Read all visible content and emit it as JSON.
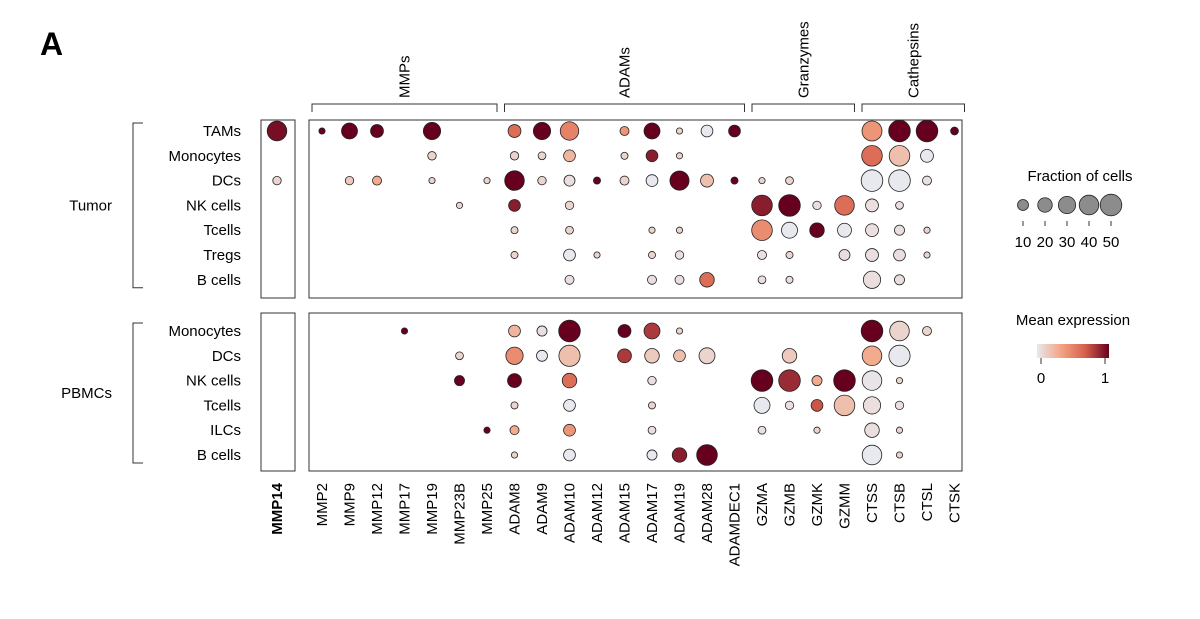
{
  "chart_data": {
    "type": "dotplot",
    "panel_label": "A",
    "genes": [
      "MMP14",
      "MMP2",
      "MMP9",
      "MMP12",
      "MMP17",
      "MMP19",
      "MMP23B",
      "MMP25",
      "ADAM8",
      "ADAM9",
      "ADAM10",
      "ADAM12",
      "ADAM15",
      "ADAM17",
      "ADAM19",
      "ADAM28",
      "ADAMDEC1",
      "GZMA",
      "GZMB",
      "GZMK",
      "GZMM",
      "CTSS",
      "CTSB",
      "CTSL",
      "CTSK"
    ],
    "highlight_gene": "MMP14",
    "gene_groups": [
      {
        "name": "MMPs",
        "from": "MMP2",
        "to": "MMP25"
      },
      {
        "name": "ADAMs",
        "from": "ADAM8",
        "to": "ADAMDEC1"
      },
      {
        "name": "Granzymes",
        "from": "GZMA",
        "to": "GZMM"
      },
      {
        "name": "Cathepsins",
        "from": "CTSS",
        "to": "CTSK"
      }
    ],
    "row_groups": [
      {
        "name": "Tumor",
        "rows": [
          "TAMs",
          "Monocytes",
          "DCs",
          "NK cells",
          "Tcells",
          "Tregs",
          "B cells"
        ]
      },
      {
        "name": "PBMCs",
        "rows": [
          "Monocytes",
          "DCs",
          "NK cells",
          "Tcells",
          "ILCs",
          "B cells"
        ]
      }
    ],
    "dots": [
      {
        "g": 0,
        "r": "TAMs",
        "gene": "MMP14",
        "frac": 40,
        "expr": 0.95
      },
      {
        "g": 0,
        "r": "TAMs",
        "gene": "MMP2",
        "frac": 2,
        "expr": 1.0
      },
      {
        "g": 0,
        "r": "TAMs",
        "gene": "MMP9",
        "frac": 25,
        "expr": 1.0
      },
      {
        "g": 0,
        "r": "TAMs",
        "gene": "MMP12",
        "frac": 15,
        "expr": 1.0
      },
      {
        "g": 0,
        "r": "TAMs",
        "gene": "MMP19",
        "frac": 30,
        "expr": 1.0
      },
      {
        "g": 0,
        "r": "TAMs",
        "gene": "ADAM8",
        "frac": 15,
        "expr": 0.6
      },
      {
        "g": 0,
        "r": "TAMs",
        "gene": "ADAM9",
        "frac": 30,
        "expr": 1.0
      },
      {
        "g": 0,
        "r": "TAMs",
        "gene": "ADAM10",
        "frac": 35,
        "expr": 0.5
      },
      {
        "g": 0,
        "r": "TAMs",
        "gene": "ADAM15",
        "frac": 6,
        "expr": 0.4
      },
      {
        "g": 0,
        "r": "TAMs",
        "gene": "ADAM17",
        "frac": 25,
        "expr": 1.0
      },
      {
        "g": 0,
        "r": "TAMs",
        "gene": "ADAM19",
        "frac": 2,
        "expr": 0.1
      },
      {
        "g": 0,
        "r": "TAMs",
        "gene": "ADAM28",
        "frac": 12,
        "expr": 0.0
      },
      {
        "g": 0,
        "r": "TAMs",
        "gene": "ADAMDEC1",
        "frac": 12,
        "expr": 1.0
      },
      {
        "g": 0,
        "r": "TAMs",
        "gene": "CTSS",
        "frac": 42,
        "expr": 0.4
      },
      {
        "g": 0,
        "r": "TAMs",
        "gene": "CTSB",
        "frac": 50,
        "expr": 1.0
      },
      {
        "g": 0,
        "r": "TAMs",
        "gene": "CTSL",
        "frac": 50,
        "expr": 1.0
      },
      {
        "g": 0,
        "r": "TAMs",
        "gene": "CTSK",
        "frac": 4,
        "expr": 1.0
      },
      {
        "g": 0,
        "r": "Monocytes",
        "gene": "MMP19",
        "frac": 5,
        "expr": 0.1
      },
      {
        "g": 0,
        "r": "Monocytes",
        "gene": "ADAM8",
        "frac": 5,
        "expr": 0.1
      },
      {
        "g": 0,
        "r": "Monocytes",
        "gene": "ADAM9",
        "frac": 4,
        "expr": 0.1
      },
      {
        "g": 0,
        "r": "Monocytes",
        "gene": "ADAM10",
        "frac": 12,
        "expr": 0.25
      },
      {
        "g": 0,
        "r": "Monocytes",
        "gene": "ADAM15",
        "frac": 3,
        "expr": 0.1
      },
      {
        "g": 0,
        "r": "Monocytes",
        "gene": "ADAM17",
        "frac": 12,
        "expr": 0.9
      },
      {
        "g": 0,
        "r": "Monocytes",
        "gene": "ADAM19",
        "frac": 2,
        "expr": 0.1
      },
      {
        "g": 0,
        "r": "Monocytes",
        "gene": "CTSS",
        "frac": 45,
        "expr": 0.6
      },
      {
        "g": 0,
        "r": "Monocytes",
        "gene": "CTSB",
        "frac": 45,
        "expr": 0.2
      },
      {
        "g": 0,
        "r": "Monocytes",
        "gene": "CTSL",
        "frac": 15,
        "expr": 0.0
      },
      {
        "g": 0,
        "r": "DCs",
        "gene": "MMP14",
        "frac": 5,
        "expr": 0.1
      },
      {
        "g": 0,
        "r": "DCs",
        "gene": "MMP9",
        "frac": 5,
        "expr": 0.15
      },
      {
        "g": 0,
        "r": "DCs",
        "gene": "MMP12",
        "frac": 6,
        "expr": 0.3
      },
      {
        "g": 0,
        "r": "DCs",
        "gene": "MMP19",
        "frac": 2,
        "expr": 0.1
      },
      {
        "g": 0,
        "r": "DCs",
        "gene": "MMP25",
        "frac": 2,
        "expr": 0.1
      },
      {
        "g": 0,
        "r": "DCs",
        "gene": "ADAM8",
        "frac": 40,
        "expr": 1.0
      },
      {
        "g": 0,
        "r": "DCs",
        "gene": "ADAM9",
        "frac": 5,
        "expr": 0.1
      },
      {
        "g": 0,
        "r": "DCs",
        "gene": "ADAM10",
        "frac": 10,
        "expr": 0.05
      },
      {
        "g": 0,
        "r": "DCs",
        "gene": "ADAM12",
        "frac": 3,
        "expr": 1.0
      },
      {
        "g": 0,
        "r": "DCs",
        "gene": "ADAM15",
        "frac": 6,
        "expr": 0.1
      },
      {
        "g": 0,
        "r": "DCs",
        "gene": "ADAM17",
        "frac": 12,
        "expr": 0.0
      },
      {
        "g": 0,
        "r": "DCs",
        "gene": "ADAM19",
        "frac": 38,
        "expr": 1.0
      },
      {
        "g": 0,
        "r": "DCs",
        "gene": "ADAM28",
        "frac": 15,
        "expr": 0.2
      },
      {
        "g": 0,
        "r": "DCs",
        "gene": "ADAMDEC1",
        "frac": 3,
        "expr": 1.0
      },
      {
        "g": 0,
        "r": "DCs",
        "gene": "GZMA",
        "frac": 2,
        "expr": 0.1
      },
      {
        "g": 0,
        "r": "DCs",
        "gene": "GZMB",
        "frac": 4,
        "expr": 0.1
      },
      {
        "g": 0,
        "r": "DCs",
        "gene": "CTSS",
        "frac": 50,
        "expr": 0.0
      },
      {
        "g": 0,
        "r": "DCs",
        "gene": "CTSB",
        "frac": 50,
        "expr": 0.0
      },
      {
        "g": 0,
        "r": "DCs",
        "gene": "CTSL",
        "frac": 6,
        "expr": 0.05
      },
      {
        "g": 0,
        "r": "NK cells",
        "gene": "MMP23B",
        "frac": 2,
        "expr": 0.1
      },
      {
        "g": 0,
        "r": "NK cells",
        "gene": "ADAM8",
        "frac": 12,
        "expr": 0.9
      },
      {
        "g": 0,
        "r": "NK cells",
        "gene": "ADAM10",
        "frac": 5,
        "expr": 0.1
      },
      {
        "g": 0,
        "r": "NK cells",
        "gene": "GZMA",
        "frac": 45,
        "expr": 0.9
      },
      {
        "g": 0,
        "r": "NK cells",
        "gene": "GZMB",
        "frac": 50,
        "expr": 1.0
      },
      {
        "g": 0,
        "r": "NK cells",
        "gene": "GZMK",
        "frac": 5,
        "expr": 0.05
      },
      {
        "g": 0,
        "r": "NK cells",
        "gene": "GZMM",
        "frac": 40,
        "expr": 0.6
      },
      {
        "g": 0,
        "r": "NK cells",
        "gene": "CTSS",
        "frac": 15,
        "expr": 0.05
      },
      {
        "g": 0,
        "r": "NK cells",
        "gene": "CTSB",
        "frac": 4,
        "expr": 0.05
      },
      {
        "g": 0,
        "r": "Tcells",
        "gene": "ADAM8",
        "frac": 3,
        "expr": 0.1
      },
      {
        "g": 0,
        "r": "Tcells",
        "gene": "ADAM10",
        "frac": 4,
        "expr": 0.1
      },
      {
        "g": 0,
        "r": "Tcells",
        "gene": "ADAM17",
        "frac": 2,
        "expr": 0.1
      },
      {
        "g": 0,
        "r": "Tcells",
        "gene": "ADAM19",
        "frac": 2,
        "expr": 0.1
      },
      {
        "g": 0,
        "r": "Tcells",
        "gene": "GZMA",
        "frac": 45,
        "expr": 0.45
      },
      {
        "g": 0,
        "r": "Tcells",
        "gene": "GZMB",
        "frac": 25,
        "expr": 0.0
      },
      {
        "g": 0,
        "r": "Tcells",
        "gene": "GZMK",
        "frac": 20,
        "expr": 1.0
      },
      {
        "g": 0,
        "r": "Tcells",
        "gene": "GZMM",
        "frac": 18,
        "expr": 0.0
      },
      {
        "g": 0,
        "r": "Tcells",
        "gene": "CTSS",
        "frac": 15,
        "expr": 0.05
      },
      {
        "g": 0,
        "r": "Tcells",
        "gene": "CTSB",
        "frac": 8,
        "expr": 0.05
      },
      {
        "g": 0,
        "r": "Tcells",
        "gene": "CTSL",
        "frac": 2,
        "expr": 0.1
      },
      {
        "g": 0,
        "r": "Tregs",
        "gene": "ADAM8",
        "frac": 3,
        "expr": 0.1
      },
      {
        "g": 0,
        "r": "Tregs",
        "gene": "ADAM10",
        "frac": 12,
        "expr": 0.0
      },
      {
        "g": 0,
        "r": "Tregs",
        "gene": "ADAM12",
        "frac": 2,
        "expr": 0.1
      },
      {
        "g": 0,
        "r": "Tregs",
        "gene": "ADAM17",
        "frac": 3,
        "expr": 0.1
      },
      {
        "g": 0,
        "r": "Tregs",
        "gene": "ADAM19",
        "frac": 5,
        "expr": 0.05
      },
      {
        "g": 0,
        "r": "Tregs",
        "gene": "GZMA",
        "frac": 6,
        "expr": 0.05
      },
      {
        "g": 0,
        "r": "Tregs",
        "gene": "GZMB",
        "frac": 3,
        "expr": 0.1
      },
      {
        "g": 0,
        "r": "Tregs",
        "gene": "GZMM",
        "frac": 10,
        "expr": 0.05
      },
      {
        "g": 0,
        "r": "Tregs",
        "gene": "CTSS",
        "frac": 15,
        "expr": 0.05
      },
      {
        "g": 0,
        "r": "Tregs",
        "gene": "CTSB",
        "frac": 12,
        "expr": 0.05
      },
      {
        "g": 0,
        "r": "Tregs",
        "gene": "CTSL",
        "frac": 2,
        "expr": 0.1
      },
      {
        "g": 0,
        "r": "B cells",
        "gene": "ADAM10",
        "frac": 6,
        "expr": 0.05
      },
      {
        "g": 0,
        "r": "B cells",
        "gene": "ADAM17",
        "frac": 6,
        "expr": 0.05
      },
      {
        "g": 0,
        "r": "B cells",
        "gene": "ADAM19",
        "frac": 6,
        "expr": 0.05
      },
      {
        "g": 0,
        "r": "B cells",
        "gene": "ADAM28",
        "frac": 20,
        "expr": 0.6
      },
      {
        "g": 0,
        "r": "B cells",
        "gene": "GZMA",
        "frac": 4,
        "expr": 0.05
      },
      {
        "g": 0,
        "r": "B cells",
        "gene": "GZMB",
        "frac": 3,
        "expr": 0.05
      },
      {
        "g": 0,
        "r": "B cells",
        "gene": "CTSS",
        "frac": 30,
        "expr": 0.05
      },
      {
        "g": 0,
        "r": "B cells",
        "gene": "CTSB",
        "frac": 8,
        "expr": 0.05
      },
      {
        "g": 1,
        "r": "Monocytes",
        "gene": "MMP17",
        "frac": 2,
        "expr": 1.0
      },
      {
        "g": 1,
        "r": "Monocytes",
        "gene": "ADAM8",
        "frac": 12,
        "expr": 0.25
      },
      {
        "g": 1,
        "r": "Monocytes",
        "gene": "ADAM9",
        "frac": 8,
        "expr": 0.05
      },
      {
        "g": 1,
        "r": "Monocytes",
        "gene": "ADAM10",
        "frac": 50,
        "expr": 1.0
      },
      {
        "g": 1,
        "r": "Monocytes",
        "gene": "ADAM15",
        "frac": 15,
        "expr": 1.0
      },
      {
        "g": 1,
        "r": "Monocytes",
        "gene": "ADAM17",
        "frac": 25,
        "expr": 0.8
      },
      {
        "g": 1,
        "r": "Monocytes",
        "gene": "ADAM19",
        "frac": 2,
        "expr": 0.1
      },
      {
        "g": 1,
        "r": "Monocytes",
        "gene": "CTSS",
        "frac": 50,
        "expr": 1.0
      },
      {
        "g": 1,
        "r": "Monocytes",
        "gene": "CTSB",
        "frac": 40,
        "expr": 0.1
      },
      {
        "g": 1,
        "r": "Monocytes",
        "gene": "CTSL",
        "frac": 6,
        "expr": 0.1
      },
      {
        "g": 1,
        "r": "DCs",
        "gene": "MMP23B",
        "frac": 4,
        "expr": 0.1
      },
      {
        "g": 1,
        "r": "DCs",
        "gene": "ADAM8",
        "frac": 30,
        "expr": 0.45
      },
      {
        "g": 1,
        "r": "DCs",
        "gene": "ADAM9",
        "frac": 10,
        "expr": 0.0
      },
      {
        "g": 1,
        "r": "DCs",
        "gene": "ADAM10",
        "frac": 48,
        "expr": 0.2
      },
      {
        "g": 1,
        "r": "DCs",
        "gene": "ADAM15",
        "frac": 18,
        "expr": 0.8
      },
      {
        "g": 1,
        "r": "DCs",
        "gene": "ADAM17",
        "frac": 20,
        "expr": 0.15
      },
      {
        "g": 1,
        "r": "DCs",
        "gene": "ADAM19",
        "frac": 12,
        "expr": 0.2
      },
      {
        "g": 1,
        "r": "DCs",
        "gene": "ADAM28",
        "frac": 25,
        "expr": 0.1
      },
      {
        "g": 1,
        "r": "DCs",
        "gene": "GZMB",
        "frac": 20,
        "expr": 0.15
      },
      {
        "g": 1,
        "r": "DCs",
        "gene": "CTSS",
        "frac": 40,
        "expr": 0.3
      },
      {
        "g": 1,
        "r": "DCs",
        "gene": "CTSB",
        "frac": 48,
        "expr": 0.0
      },
      {
        "g": 1,
        "r": "NK cells",
        "gene": "MMP23B",
        "frac": 8,
        "expr": 1.0
      },
      {
        "g": 1,
        "r": "NK cells",
        "gene": "ADAM8",
        "frac": 18,
        "expr": 1.0
      },
      {
        "g": 1,
        "r": "NK cells",
        "gene": "ADAM10",
        "frac": 20,
        "expr": 0.6
      },
      {
        "g": 1,
        "r": "NK cells",
        "gene": "ADAM17",
        "frac": 5,
        "expr": 0.05
      },
      {
        "g": 1,
        "r": "NK cells",
        "gene": "GZMA",
        "frac": 50,
        "expr": 1.0
      },
      {
        "g": 1,
        "r": "NK cells",
        "gene": "GZMB",
        "frac": 50,
        "expr": 0.85
      },
      {
        "g": 1,
        "r": "NK cells",
        "gene": "GZMK",
        "frac": 8,
        "expr": 0.3
      },
      {
        "g": 1,
        "r": "NK cells",
        "gene": "GZMM",
        "frac": 50,
        "expr": 1.0
      },
      {
        "g": 1,
        "r": "NK cells",
        "gene": "CTSS",
        "frac": 40,
        "expr": 0.02
      },
      {
        "g": 1,
        "r": "NK cells",
        "gene": "CTSB",
        "frac": 2,
        "expr": 0.1
      },
      {
        "g": 1,
        "r": "Tcells",
        "gene": "ADAM8",
        "frac": 3,
        "expr": 0.1
      },
      {
        "g": 1,
        "r": "Tcells",
        "gene": "ADAM10",
        "frac": 12,
        "expr": 0.0
      },
      {
        "g": 1,
        "r": "Tcells",
        "gene": "ADAM17",
        "frac": 3,
        "expr": 0.1
      },
      {
        "g": 1,
        "r": "Tcells",
        "gene": "GZMA",
        "frac": 25,
        "expr": 0.0
      },
      {
        "g": 1,
        "r": "Tcells",
        "gene": "GZMB",
        "frac": 5,
        "expr": 0.05
      },
      {
        "g": 1,
        "r": "Tcells",
        "gene": "GZMK",
        "frac": 12,
        "expr": 0.7
      },
      {
        "g": 1,
        "r": "Tcells",
        "gene": "GZMM",
        "frac": 45,
        "expr": 0.2
      },
      {
        "g": 1,
        "r": "Tcells",
        "gene": "CTSS",
        "frac": 30,
        "expr": 0.05
      },
      {
        "g": 1,
        "r": "Tcells",
        "gene": "CTSB",
        "frac": 5,
        "expr": 0.05
      },
      {
        "g": 1,
        "r": "ILCs",
        "gene": "MMP25",
        "frac": 2,
        "expr": 1.0
      },
      {
        "g": 1,
        "r": "ILCs",
        "gene": "ADAM8",
        "frac": 6,
        "expr": 0.3
      },
      {
        "g": 1,
        "r": "ILCs",
        "gene": "ADAM10",
        "frac": 12,
        "expr": 0.4
      },
      {
        "g": 1,
        "r": "ILCs",
        "gene": "ADAM17",
        "frac": 4,
        "expr": 0.05
      },
      {
        "g": 1,
        "r": "ILCs",
        "gene": "GZMA",
        "frac": 4,
        "expr": 0.05
      },
      {
        "g": 1,
        "r": "ILCs",
        "gene": "GZMK",
        "frac": 2,
        "expr": 0.1
      },
      {
        "g": 1,
        "r": "ILCs",
        "gene": "CTSS",
        "frac": 20,
        "expr": 0.05
      },
      {
        "g": 1,
        "r": "ILCs",
        "gene": "CTSB",
        "frac": 2,
        "expr": 0.1
      },
      {
        "g": 1,
        "r": "B cells",
        "gene": "ADAM8",
        "frac": 2,
        "expr": 0.1
      },
      {
        "g": 1,
        "r": "B cells",
        "gene": "ADAM10",
        "frac": 12,
        "expr": 0.0
      },
      {
        "g": 1,
        "r": "B cells",
        "gene": "ADAM17",
        "frac": 8,
        "expr": 0.0
      },
      {
        "g": 1,
        "r": "B cells",
        "gene": "ADAM19",
        "frac": 20,
        "expr": 0.9
      },
      {
        "g": 1,
        "r": "B cells",
        "gene": "ADAM28",
        "frac": 45,
        "expr": 1.0
      },
      {
        "g": 1,
        "r": "B cells",
        "gene": "CTSS",
        "frac": 40,
        "expr": 0.0
      },
      {
        "g": 1,
        "r": "B cells",
        "gene": "CTSB",
        "frac": 2,
        "expr": 0.1
      }
    ],
    "size_legend": {
      "title": "Fraction of cells",
      "values": [
        10,
        20,
        30,
        40,
        50
      ],
      "labels": [
        "10",
        "20",
        "30",
        "40",
        "50"
      ]
    },
    "color_legend": {
      "title": "Mean expression",
      "min": 0,
      "max": 1,
      "min_label": "0",
      "max_label": "1",
      "colors": [
        "#e8e8ef",
        "#f3a482",
        "#d6604d",
        "#67001f"
      ]
    }
  }
}
